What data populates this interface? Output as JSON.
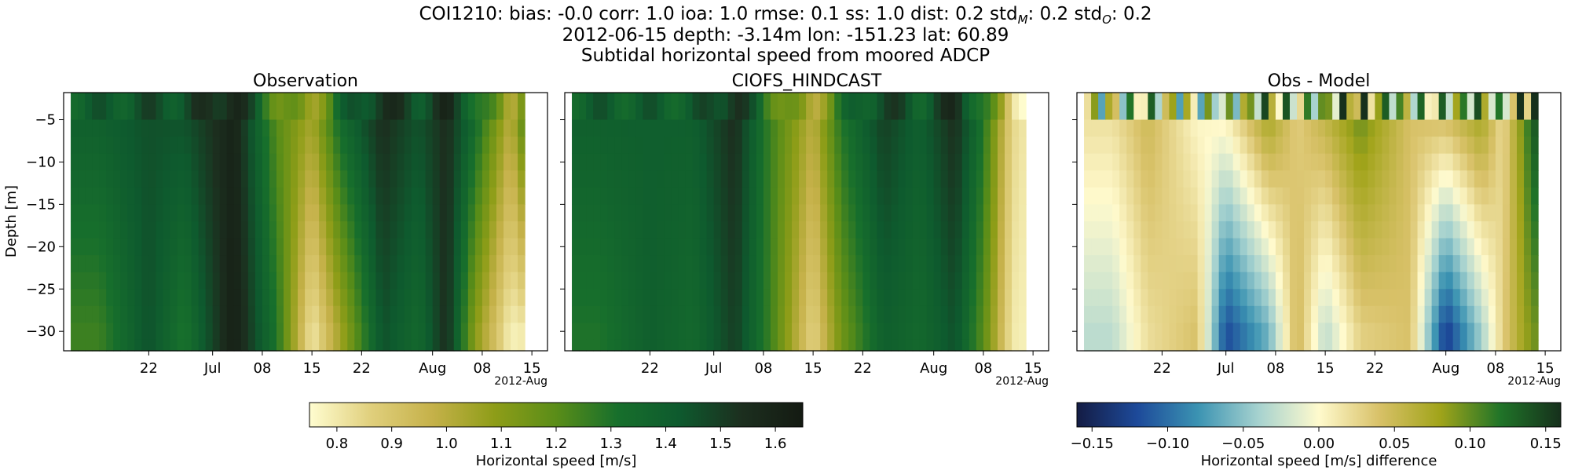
{
  "header": {
    "line1_prefix": "COI1210: bias: -0.0  corr: 1.0  ioa: 1.0  rmse: 0.1  ss: 1.0  dist: 0.2  std",
    "line1_sub_m": "M",
    "line1_mid": ": 0.2  std",
    "line1_sub_o": "O",
    "line1_suffix": ": 0.2",
    "line2": "2012-06-15 depth: -3.14m lon: -151.23 lat: 60.89",
    "line3": "Subtidal horizontal speed from moored ADCP"
  },
  "colors": {
    "speed_colormap": [
      "#fffdd0",
      "#e0cf7c",
      "#c5b149",
      "#8e9d18",
      "#5a8d18",
      "#176f2c",
      "#0e5a2e",
      "#1c2f1f",
      "#141a12"
    ],
    "diff_colormap": [
      "#141c44",
      "#1d4a9a",
      "#3b93b2",
      "#a6d2cf",
      "#fffacd",
      "#d8c168",
      "#a1a41a",
      "#207428",
      "#16301c"
    ]
  },
  "chart_data": [
    {
      "type": "heatmap",
      "title": "Observation",
      "ylabel": "Depth [m]",
      "ylim": [
        -32.3,
        -1.8
      ],
      "yticks": [
        -5,
        -10,
        -15,
        -20,
        -25,
        -30
      ],
      "xticklabels": [
        "22",
        "Jul",
        "08",
        "15",
        "22",
        "Aug",
        "08",
        "15"
      ],
      "x_offset_label": "2012-Aug",
      "x_range": [
        "2012-06-15",
        "2012-08-14"
      ],
      "depths": [
        -3.14,
        -5,
        -10,
        -15,
        -20,
        -25,
        -30
      ],
      "speed_profile": {
        "dates": [
          "2012-06-15",
          "2012-06-22",
          "2012-06-27",
          "2012-07-04",
          "2012-07-10",
          "2012-07-15",
          "2012-07-19",
          "2012-07-25",
          "2012-07-30",
          "2012-08-03",
          "2012-08-07",
          "2012-08-12",
          "2012-08-14"
        ],
        "surface": [
          1.4,
          1.45,
          1.45,
          1.6,
          1.2,
          1.05,
          1.35,
          1.55,
          1.45,
          1.55,
          1.35,
          1.0,
          1.25
        ],
        "deep": [
          1.25,
          1.45,
          1.3,
          1.62,
          1.3,
          0.8,
          1.05,
          1.45,
          1.35,
          1.55,
          1.1,
          0.78,
          0.8
        ]
      }
    },
    {
      "type": "heatmap",
      "title": "CIOFS_HINDCAST",
      "ylim": [
        -32.3,
        -1.8
      ],
      "yticks": [
        -5,
        -10,
        -15,
        -20,
        -25,
        -30
      ],
      "xticklabels": [
        "22",
        "Jul",
        "08",
        "15",
        "22",
        "Aug",
        "08",
        "15"
      ],
      "x_offset_label": "2012-Aug",
      "x_range": [
        "2012-06-15",
        "2012-08-14"
      ],
      "speed_profile": {
        "dates": [
          "2012-06-15",
          "2012-06-22",
          "2012-06-28",
          "2012-07-04",
          "2012-07-09",
          "2012-07-15",
          "2012-07-19",
          "2012-07-25",
          "2012-07-30",
          "2012-08-04",
          "2012-08-08",
          "2012-08-12",
          "2012-08-14"
        ],
        "surface": [
          1.4,
          1.4,
          1.4,
          1.55,
          1.25,
          1.0,
          1.3,
          1.5,
          1.4,
          1.55,
          1.3,
          0.85,
          0.8
        ],
        "deep": [
          1.3,
          1.4,
          1.35,
          1.5,
          1.25,
          0.85,
          1.15,
          1.4,
          1.35,
          1.45,
          1.2,
          0.8,
          0.78
        ]
      }
    },
    {
      "type": "heatmap",
      "title": "Obs - Model",
      "ylim": [
        -32.3,
        -1.8
      ],
      "yticks": [
        -5,
        -10,
        -15,
        -20,
        -25,
        -30
      ],
      "xticklabels": [
        "22",
        "Jul",
        "08",
        "15",
        "22",
        "Aug",
        "08",
        "15"
      ],
      "x_offset_label": "2012-Aug",
      "x_range": [
        "2012-06-15",
        "2012-08-14"
      ],
      "difference_profile": {
        "dates": [
          "2012-06-15",
          "2012-06-20",
          "2012-06-27",
          "2012-07-01",
          "2012-07-07",
          "2012-07-11",
          "2012-07-15",
          "2012-07-20",
          "2012-07-27",
          "2012-08-01",
          "2012-08-06",
          "2012-08-09",
          "2012-08-12",
          "2012-08-14"
        ],
        "surface": [
          0.02,
          0.05,
          0.0,
          0.01,
          0.08,
          0.03,
          0.06,
          0.1,
          0.04,
          0.05,
          0.08,
          0.02,
          0.1,
          0.15
        ],
        "deep": [
          -0.03,
          0.02,
          0.04,
          -0.12,
          -0.06,
          0.05,
          -0.03,
          0.03,
          0.04,
          -0.13,
          -0.04,
          0.03,
          0.08,
          0.1
        ]
      }
    }
  ],
  "colorbars": [
    {
      "label": "Horizontal speed [m/s]",
      "range": [
        0.75,
        1.65
      ],
      "ticks": [
        "0.8",
        "0.9",
        "1.0",
        "1.1",
        "1.2",
        "1.3",
        "1.4",
        "1.5",
        "1.6"
      ]
    },
    {
      "label": "Horizontal speed [m/s] difference",
      "range": [
        -0.16,
        0.16
      ],
      "ticks": [
        "−0.15",
        "−0.10",
        "−0.05",
        "0.00",
        "0.05",
        "0.10",
        "0.15"
      ]
    }
  ]
}
